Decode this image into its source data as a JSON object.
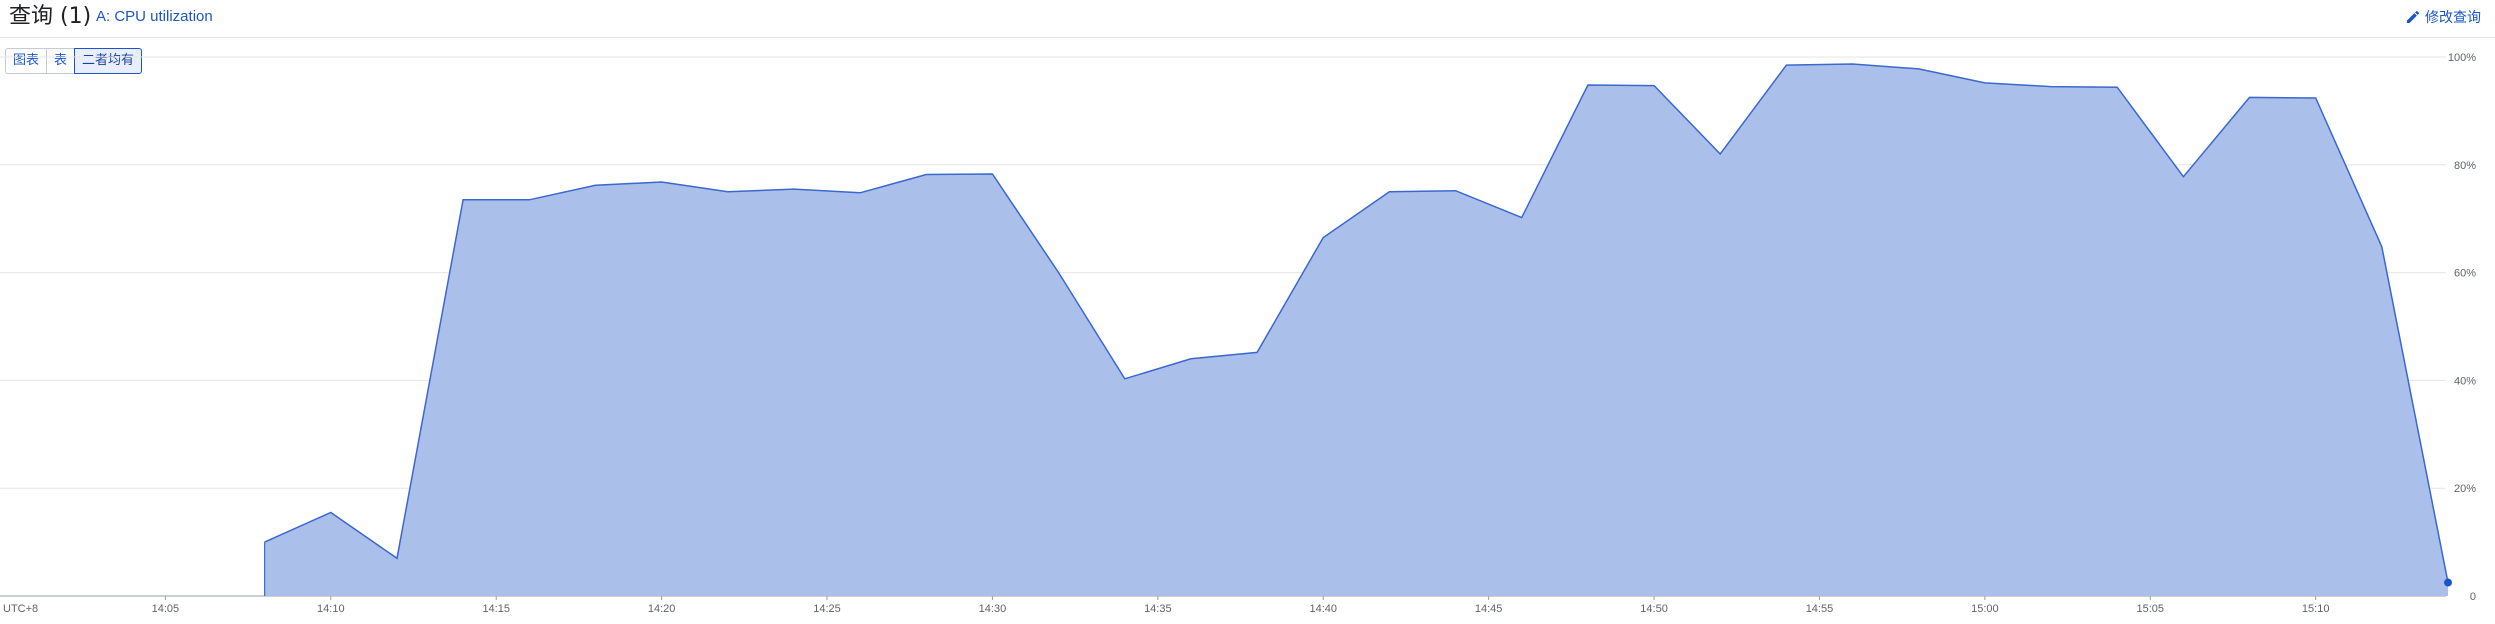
{
  "header": {
    "title": "查询 (1)",
    "query_label": "A: CPU utilization",
    "edit_label": "修改查询"
  },
  "view_toggle": {
    "options": [
      "图表",
      "表",
      "二者均有"
    ],
    "selected": "二者均有"
  },
  "colors": {
    "accent": "#1a56c9",
    "area_fill": "#aac0ea",
    "line": "#3b67cf",
    "grid": "#e6e6e6"
  },
  "chart_data": {
    "type": "area",
    "timezone_label": "UTC+8",
    "x_tick_labels": [
      "14:05",
      "14:10",
      "14:15",
      "14:20",
      "14:25",
      "14:30",
      "14:35",
      "14:40",
      "14:45",
      "14:50",
      "14:55",
      "15:00",
      "15:05",
      "15:10"
    ],
    "y_tick_labels": [
      "0",
      "20%",
      "40%",
      "60%",
      "80%",
      "100%"
    ],
    "ylim": [
      0,
      100
    ],
    "xlim_minutes_from_1400": [
      0,
      74
    ],
    "grid": true,
    "series": [
      {
        "points": [
          {
            "t": "14:08",
            "v": 10
          },
          {
            "t": "14:10",
            "v": 15.5
          },
          {
            "t": "14:12",
            "v": 7
          },
          {
            "t": "14:14",
            "v": 73.5
          },
          {
            "t": "14:16",
            "v": 73.5
          },
          {
            "t": "14:18",
            "v": 76.2
          },
          {
            "t": "14:20",
            "v": 76.8
          },
          {
            "t": "14:22",
            "v": 75
          },
          {
            "t": "14:24",
            "v": 75.5
          },
          {
            "t": "14:26",
            "v": 74.8
          },
          {
            "t": "14:28",
            "v": 78.2
          },
          {
            "t": "14:30",
            "v": 78.3
          },
          {
            "t": "14:32",
            "v": 60
          },
          {
            "t": "14:34",
            "v": 40.3
          },
          {
            "t": "14:36",
            "v": 44
          },
          {
            "t": "14:38",
            "v": 45.2
          },
          {
            "t": "14:40",
            "v": 66.5
          },
          {
            "t": "14:42",
            "v": 75
          },
          {
            "t": "14:44",
            "v": 75.2
          },
          {
            "t": "14:46",
            "v": 70.2
          },
          {
            "t": "14:48",
            "v": 94.8
          },
          {
            "t": "14:50",
            "v": 94.7
          },
          {
            "t": "14:52",
            "v": 82
          },
          {
            "t": "14:54",
            "v": 98.5
          },
          {
            "t": "14:56",
            "v": 98.7
          },
          {
            "t": "14:58",
            "v": 97.8
          },
          {
            "t": "15:00",
            "v": 95.2
          },
          {
            "t": "15:02",
            "v": 94.5
          },
          {
            "t": "15:04",
            "v": 94.4
          },
          {
            "t": "15:06",
            "v": 77.8
          },
          {
            "t": "15:08",
            "v": 92.5
          },
          {
            "t": "15:10",
            "v": 92.4
          },
          {
            "t": "15:12",
            "v": 64.8
          },
          {
            "t": "15:14",
            "v": 2.5
          }
        ]
      }
    ]
  }
}
